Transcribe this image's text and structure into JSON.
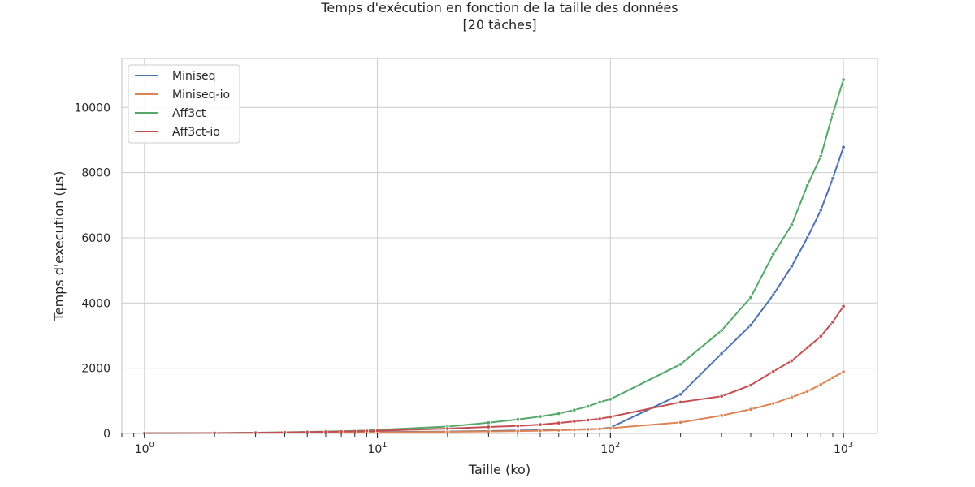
{
  "chart_data": {
    "type": "line",
    "title": "Temps d'exécution en fonction de la taille des données",
    "subtitle": "[20 tâches]",
    "xlabel": "Taille (ko)",
    "ylabel": "Temps d'execution (µs)",
    "xscale": "log",
    "xlim": [
      0.8,
      1400
    ],
    "ylim": [
      0,
      11500
    ],
    "x_ticks": [
      {
        "value": 1,
        "mantissa": "10",
        "exponent": "0"
      },
      {
        "value": 10,
        "mantissa": "10",
        "exponent": "1"
      },
      {
        "value": 100,
        "mantissa": "10",
        "exponent": "2"
      },
      {
        "value": 1000,
        "mantissa": "10",
        "exponent": "3"
      }
    ],
    "y_ticks": [
      {
        "value": 0,
        "label": "0"
      },
      {
        "value": 2000,
        "label": "2000"
      },
      {
        "value": 4000,
        "label": "4000"
      },
      {
        "value": 6000,
        "label": "6000"
      },
      {
        "value": 8000,
        "label": "8000"
      },
      {
        "value": 10000,
        "label": "10000"
      }
    ],
    "grid": true,
    "legend_position": "top-left",
    "x": [
      1,
      2,
      3,
      4,
      5,
      6,
      7,
      8,
      9,
      10,
      20,
      30,
      40,
      50,
      60,
      70,
      80,
      90,
      100,
      200,
      300,
      400,
      500,
      600,
      700,
      800,
      900,
      1000
    ],
    "series": [
      {
        "name": "Miniseq",
        "color": "#4c72b0",
        "values": [
          5,
          9,
          13,
          17,
          21,
          25,
          30,
          34,
          38,
          42,
          60,
          75,
          90,
          100,
          110,
          120,
          130,
          140,
          180,
          1200,
          2450,
          3320,
          4250,
          5130,
          6000,
          6850,
          7820,
          8780
        ]
      },
      {
        "name": "Miniseq-io",
        "color": "#dd8452",
        "values": [
          4,
          7,
          10,
          13,
          16,
          19,
          22,
          25,
          28,
          32,
          50,
          62,
          72,
          85,
          100,
          112,
          125,
          140,
          160,
          340,
          550,
          740,
          920,
          1110,
          1290,
          1500,
          1710,
          1890
        ]
      },
      {
        "name": "Aff3ct",
        "color": "#55a868",
        "values": [
          6,
          14,
          25,
          38,
          50,
          60,
          70,
          80,
          90,
          110,
          210,
          330,
          430,
          520,
          610,
          720,
          830,
          960,
          1050,
          2120,
          3160,
          4170,
          5500,
          6400,
          7600,
          8500,
          9800,
          10850
        ]
      },
      {
        "name": "Aff3ct-io",
        "color": "#c44e52",
        "values": [
          5,
          12,
          22,
          32,
          42,
          50,
          58,
          66,
          74,
          82,
          150,
          200,
          230,
          270,
          320,
          370,
          410,
          450,
          510,
          960,
          1140,
          1480,
          1900,
          2230,
          2630,
          2980,
          3420,
          3900
        ]
      }
    ]
  }
}
